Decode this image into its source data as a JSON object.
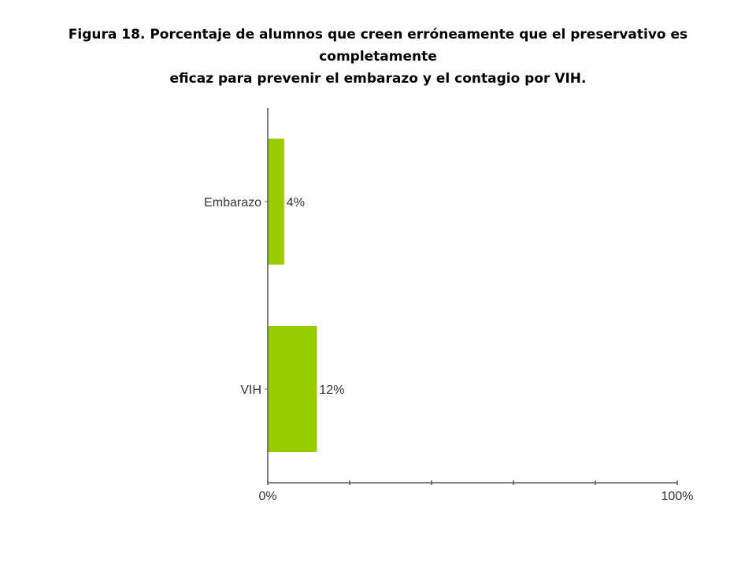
{
  "title_line1": "Figura 18.  Porcentaje de alumnos que creen erróneamente que el preservativo es completamente",
  "title_line2": "eficaz para prevenir el embarazo y el contagio por VIH.",
  "chart_data": {
    "type": "bar",
    "orientation": "horizontal",
    "categories": [
      "Embarazo",
      "VIH"
    ],
    "values": [
      4,
      12
    ],
    "value_labels": [
      "4%",
      "12%"
    ],
    "xlim": [
      0,
      100
    ],
    "x_tick_labels": [
      "0%",
      "100%"
    ],
    "x_minor_ticks": 5,
    "bar_color": "#99cc00",
    "grid": false,
    "legend": "none"
  }
}
